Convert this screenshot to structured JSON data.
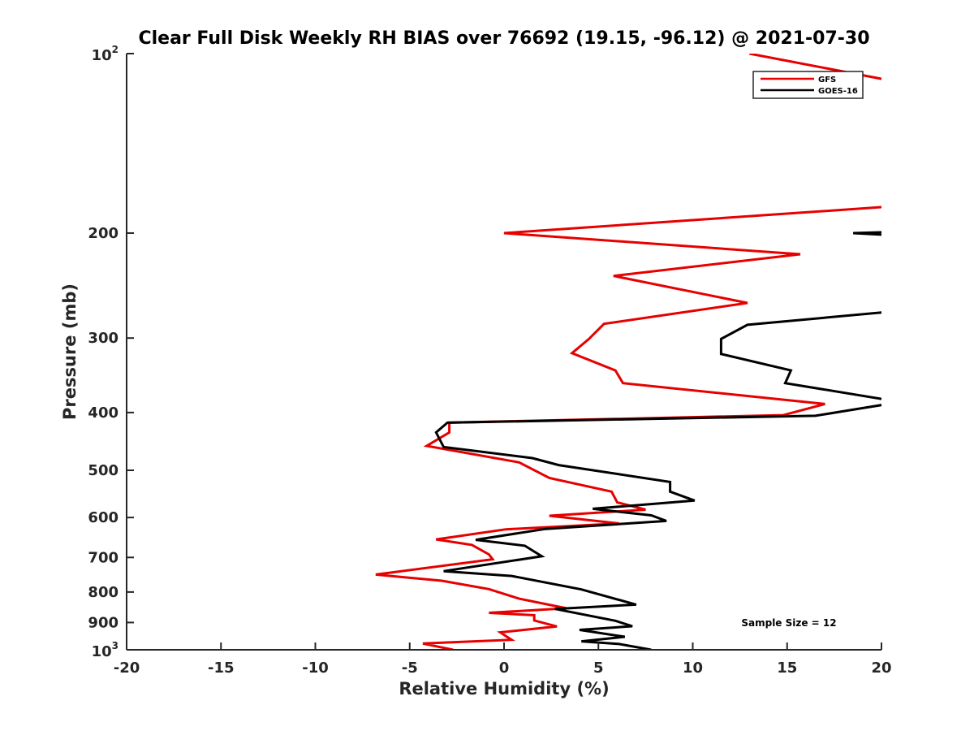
{
  "chart_data": {
    "type": "line",
    "title": "Clear Full Disk Weekly RH BIAS over 76692 (19.15, -96.12) @ 2021-07-30",
    "xlabel": "Relative Humidity (%)",
    "ylabel": "Pressure (mb)",
    "xlim": [
      -20,
      20
    ],
    "ylim": [
      100,
      1000
    ],
    "yscale": "log",
    "yreversed": true,
    "x_ticks": [
      {
        "value": -20,
        "label": "-20"
      },
      {
        "value": -15,
        "label": "-15"
      },
      {
        "value": -10,
        "label": "-10"
      },
      {
        "value": -5,
        "label": "-5"
      },
      {
        "value": 0,
        "label": "0"
      },
      {
        "value": 5,
        "label": "5"
      },
      {
        "value": 10,
        "label": "10"
      },
      {
        "value": 15,
        "label": "15"
      },
      {
        "value": 20,
        "label": "20"
      }
    ],
    "y_ticks": [
      {
        "value": 100,
        "base": "10",
        "exp": "2"
      },
      {
        "value": 200,
        "label": "200"
      },
      {
        "value": 300,
        "label": "300"
      },
      {
        "value": 400,
        "label": "400"
      },
      {
        "value": 500,
        "label": "500"
      },
      {
        "value": 600,
        "label": "600"
      },
      {
        "value": 700,
        "label": "700"
      },
      {
        "value": 800,
        "label": "800"
      },
      {
        "value": 900,
        "label": "900"
      },
      {
        "value": 1000,
        "base": "10",
        "exp": "3"
      }
    ],
    "legend": {
      "location": "top-right"
    },
    "annotation": "Sample Size = 12",
    "series": [
      {
        "name": "GFS",
        "color": "#e60000",
        "points": [
          [
            13,
            100
          ],
          [
            20.5,
            111
          ],
          [
            null,
            null
          ],
          [
            21,
            180
          ],
          [
            0,
            200
          ],
          [
            15.7,
            217
          ],
          [
            5.8,
            236
          ],
          [
            12.9,
            262
          ],
          [
            5.3,
            284
          ],
          [
            4.5,
            301
          ],
          [
            3.6,
            318
          ],
          [
            5.9,
            340
          ],
          [
            6.3,
            357
          ],
          [
            17,
            387
          ],
          [
            14.8,
            404
          ],
          [
            -2.9,
            416
          ],
          [
            -2.9,
            432
          ],
          [
            -4.1,
            455
          ],
          [
            0.8,
            485
          ],
          [
            2.4,
            515
          ],
          [
            5.7,
            543
          ],
          [
            6.0,
            566
          ],
          [
            7.5,
            582
          ],
          [
            2.4,
            596
          ],
          [
            6.1,
            614
          ],
          [
            0.1,
            628
          ],
          [
            -3.6,
            653
          ],
          [
            -1.7,
            667
          ],
          [
            -0.8,
            692
          ],
          [
            -0.6,
            705
          ],
          [
            -6.8,
            748
          ],
          [
            -3.3,
            766
          ],
          [
            -0.8,
            791
          ],
          [
            0.8,
            821
          ],
          [
            3.3,
            852
          ],
          [
            -0.8,
            867
          ],
          [
            1.6,
            875
          ],
          [
            1.6,
            893
          ],
          [
            2.8,
            914
          ],
          [
            -0.2,
            935
          ],
          [
            0.4,
            962
          ],
          [
            -4.3,
            976
          ],
          [
            -2.7,
            1000
          ]
        ]
      },
      {
        "name": "GOES-16",
        "color": "#000000",
        "points": [
          [
            21,
            199
          ],
          [
            18.5,
            200
          ],
          [
            21,
            202
          ],
          [
            null,
            null
          ],
          [
            21,
            270
          ],
          [
            12.9,
            285
          ],
          [
            11.5,
            301
          ],
          [
            11.5,
            319
          ],
          [
            15.2,
            340
          ],
          [
            14.9,
            357
          ],
          [
            21,
            384
          ],
          [
            16.5,
            405
          ],
          [
            -3.0,
            416
          ],
          [
            -3.6,
            432
          ],
          [
            -3.2,
            457
          ],
          [
            1.5,
            477
          ],
          [
            2.9,
            490
          ],
          [
            8.8,
            523
          ],
          [
            8.8,
            543
          ],
          [
            10.1,
            562
          ],
          [
            4.7,
            580
          ],
          [
            7.8,
            595
          ],
          [
            8.6,
            608
          ],
          [
            2.2,
            627
          ],
          [
            -1.5,
            654
          ],
          [
            1.1,
            669
          ],
          [
            2.0,
            697
          ],
          [
            -3.2,
            738
          ],
          [
            0.4,
            752
          ],
          [
            4.1,
            792
          ],
          [
            7.0,
            840
          ],
          [
            2.7,
            854
          ],
          [
            5.9,
            894
          ],
          [
            6.8,
            913
          ],
          [
            4.0,
            926
          ],
          [
            6.4,
            951
          ],
          [
            4.1,
            968
          ],
          [
            6.1,
            978
          ],
          [
            7.8,
            1000
          ]
        ]
      }
    ]
  }
}
